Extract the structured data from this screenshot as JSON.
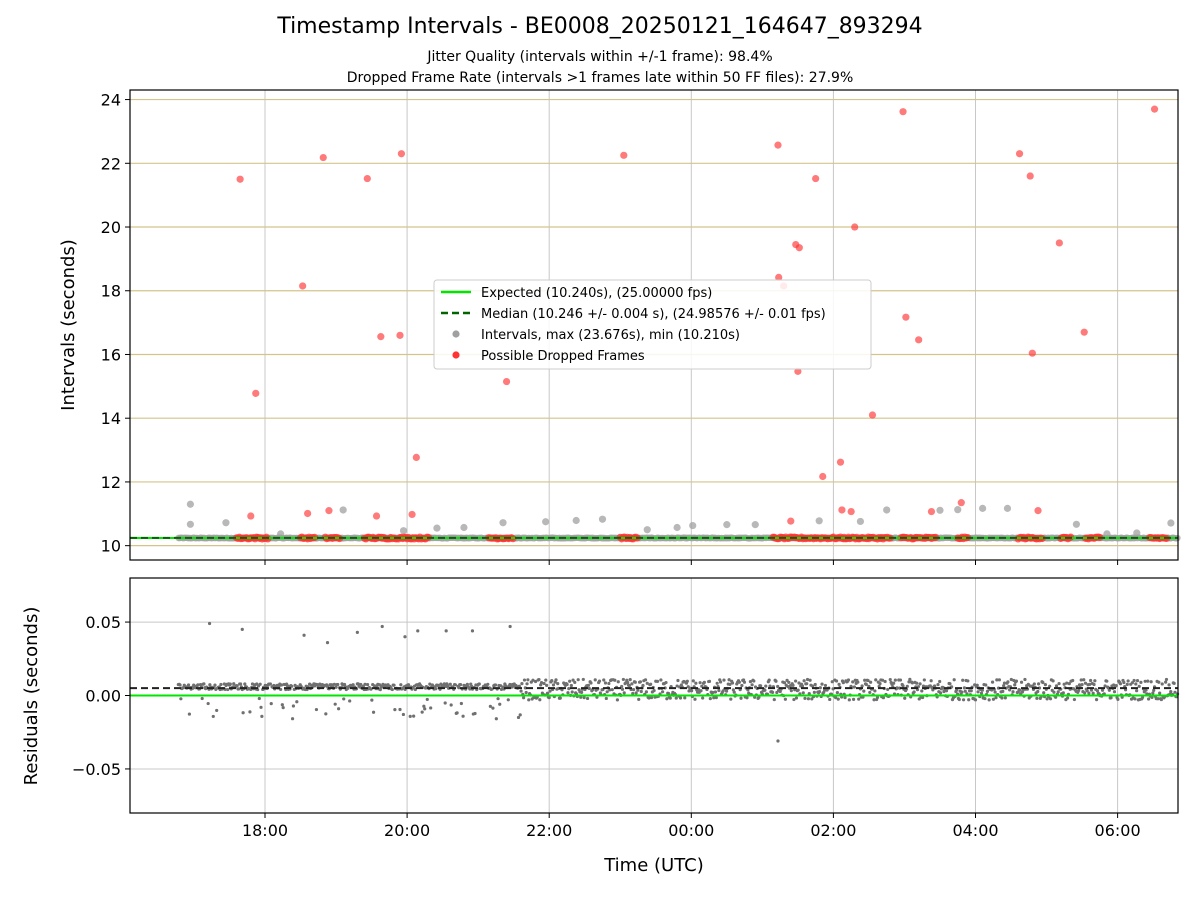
{
  "title": "Timestamp Intervals - BE0008_20250121_164647_893294",
  "subtitle_1": "Jitter Quality (intervals within +/-1 frame): 98.4%",
  "subtitle_2": "Dropped Frame Rate (intervals >1 frames late within 50 FF files): 27.9%",
  "colors": {
    "expected_line": "#00e600",
    "median_line": "#006400",
    "intervals_marker": "#a0a0a0",
    "dropped_marker": "#ff3333",
    "residual_marker": "#707070",
    "top_gridline": "#d4c48a",
    "gridline": "#c8c8c8"
  },
  "chart_data": [
    {
      "type": "scatter",
      "panel": "top",
      "ylabel": "Intervals (seconds)",
      "x_unit": "hours since 2025-01-21 00:00 UTC",
      "xlim": [
        16.1,
        30.85
      ],
      "ylim": [
        9.55,
        24.3
      ],
      "yticks": [
        10,
        12,
        14,
        16,
        18,
        20,
        22,
        24
      ],
      "ytick_labels": [
        "10",
        "12",
        "14",
        "16",
        "18",
        "20",
        "22",
        "24"
      ],
      "grid": true,
      "legend_position": "center",
      "legend": {
        "expected": "Expected (10.240s), (25.00000 fps)",
        "median": "Median (10.246 +/- 0.004 s), (24.98576 +/- 0.01 fps)",
        "intervals": "Intervals, max (23.676s), min (10.210s)",
        "dropped": "Possible Dropped Frames"
      },
      "expected_value": 10.24,
      "median_value": 10.246,
      "baseline": {
        "x_start": 16.78,
        "x_end": 30.85,
        "y": 10.24
      },
      "series": [
        {
          "key": "intervals",
          "x": [
            16.95,
            16.95,
            17.45,
            18.22,
            19.1,
            19.95,
            20.42,
            20.8,
            21.35,
            21.95,
            22.38,
            22.75,
            23.38,
            23.8,
            24.02,
            24.5,
            24.9,
            25.8,
            26.38,
            26.75,
            27.5,
            27.75,
            28.1,
            28.45,
            29.42,
            29.85,
            30.27,
            30.75
          ],
          "y": [
            11.3,
            10.67,
            10.72,
            10.37,
            11.12,
            10.47,
            10.55,
            10.57,
            10.72,
            10.75,
            10.79,
            10.83,
            10.5,
            10.57,
            10.63,
            10.66,
            10.66,
            10.78,
            10.76,
            11.12,
            11.11,
            11.13,
            11.17,
            11.17,
            10.67,
            10.37,
            10.4,
            10.71
          ]
        },
        {
          "key": "dropped",
          "x": [
            17.65,
            17.87,
            17.8,
            18.53,
            18.82,
            18.6,
            18.9,
            19.44,
            19.63,
            19.57,
            19.92,
            19.9,
            20.13,
            20.07,
            21.4,
            23.05,
            25.22,
            25.23,
            25.3,
            25.4,
            25.47,
            25.52,
            25.5,
            25.75,
            25.85,
            26.1,
            26.3,
            26.12,
            26.25,
            26.55,
            26.98,
            27.02,
            27.2,
            27.38,
            27.8,
            28.62,
            28.77,
            28.8,
            28.88,
            29.18,
            29.53,
            30.52
          ],
          "y": [
            21.5,
            14.78,
            10.93,
            18.15,
            22.18,
            11.01,
            11.1,
            21.52,
            16.56,
            10.93,
            22.3,
            16.6,
            12.77,
            10.98,
            15.15,
            22.25,
            22.57,
            18.42,
            18.15,
            10.77,
            19.45,
            19.35,
            15.47,
            21.52,
            12.17,
            12.62,
            20.0,
            11.12,
            11.07,
            14.1,
            23.62,
            17.17,
            16.46,
            11.07,
            11.35,
            22.3,
            21.6,
            16.04,
            11.1,
            19.5,
            16.7,
            23.7
          ]
        }
      ]
    },
    {
      "type": "scatter",
      "panel": "bottom",
      "xlabel": "Time (UTC)",
      "ylabel": "Residuals (seconds)",
      "xlim": [
        16.1,
        30.85
      ],
      "ylim": [
        -0.08,
        0.08
      ],
      "xticks": [
        18,
        20,
        22,
        24,
        26,
        28,
        30
      ],
      "xtick_labels": [
        "18:00",
        "20:00",
        "22:00",
        "00:00",
        "02:00",
        "04:00",
        "06:00"
      ],
      "yticks": [
        -0.05,
        0.0,
        0.05
      ],
      "ytick_labels": [
        "−0.05",
        "0.00",
        "0.05"
      ],
      "grid": true,
      "expected_residual": 0.0,
      "median_residual": 0.005,
      "series": [
        {
          "key": "residual_outliers",
          "x": [
            17.22,
            17.68,
            18.55,
            18.88,
            19.3,
            19.65,
            19.97,
            20.15,
            20.55,
            20.92,
            21.45,
            25.22
          ],
          "y": [
            0.049,
            0.045,
            0.041,
            0.036,
            0.043,
            0.047,
            0.04,
            0.044,
            0.044,
            0.044,
            0.047,
            -0.031
          ]
        }
      ]
    }
  ]
}
